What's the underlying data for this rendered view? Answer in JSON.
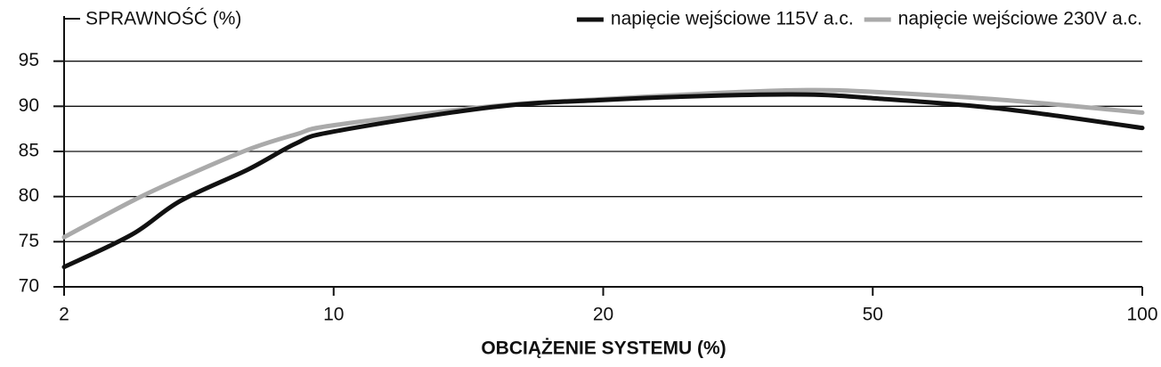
{
  "chart_data": {
    "type": "line",
    "y_label": "SPRAWNOŚĆ (%)",
    "x_label": "OBCIĄŻENIE SYSTEMU (%)",
    "x": [
      2,
      3,
      4,
      6,
      8,
      10,
      15,
      20,
      30,
      40,
      50,
      70,
      100
    ],
    "series": [
      {
        "name": "napięcie wejściowe 115V a.c.",
        "color": "#111111",
        "values": [
          72.2,
          75.8,
          79.5,
          83.0,
          85.9,
          87.2,
          89.9,
          90.7,
          91.2,
          91.3,
          90.9,
          89.7,
          87.6
        ]
      },
      {
        "name": "napięcie wejściowe 230V a.c.",
        "color": "#aaaaaa",
        "values": [
          75.5,
          79.5,
          82.0,
          85.2,
          86.9,
          87.9,
          90.0,
          90.8,
          91.5,
          91.8,
          91.6,
          90.7,
          89.3
        ]
      }
    ],
    "xticks": [
      2,
      10,
      20,
      50,
      100
    ],
    "ylim": [
      70,
      100
    ],
    "yticks": [
      70,
      75,
      80,
      85,
      90,
      95
    ],
    "grid": true,
    "legend": "top-right"
  }
}
